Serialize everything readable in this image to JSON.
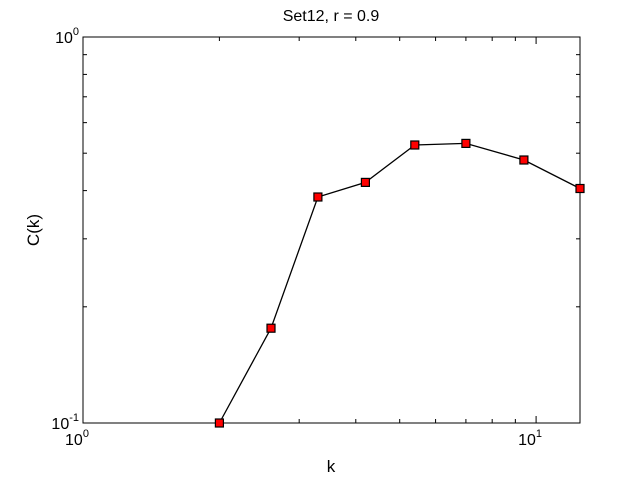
{
  "chart_data": {
    "type": "line",
    "title": "Set12, r = 0.9",
    "xlabel": "k",
    "ylabel": "C(k)",
    "xscale": "log",
    "yscale": "log",
    "xlim": [
      1,
      12.5
    ],
    "ylim": [
      0.1,
      1
    ],
    "x_ticks": [
      {
        "value": 1,
        "base": "10",
        "exp": "0"
      },
      {
        "value": 10,
        "base": "10",
        "exp": "1"
      }
    ],
    "y_ticks": [
      {
        "value": 0.1,
        "base": "10",
        "exp": "-1"
      },
      {
        "value": 1,
        "base": "10",
        "exp": "0"
      }
    ],
    "grid": false,
    "series": [
      {
        "line_color": "#000000",
        "marker": "square",
        "marker_color": "#ff0000",
        "marker_edge_color": "#000000",
        "x": [
          2,
          2.6,
          3.3,
          4.2,
          5.4,
          7.0,
          9.4,
          12.5
        ],
        "y": [
          0.1,
          0.176,
          0.385,
          0.42,
          0.525,
          0.53,
          0.48,
          0.405
        ]
      }
    ]
  }
}
